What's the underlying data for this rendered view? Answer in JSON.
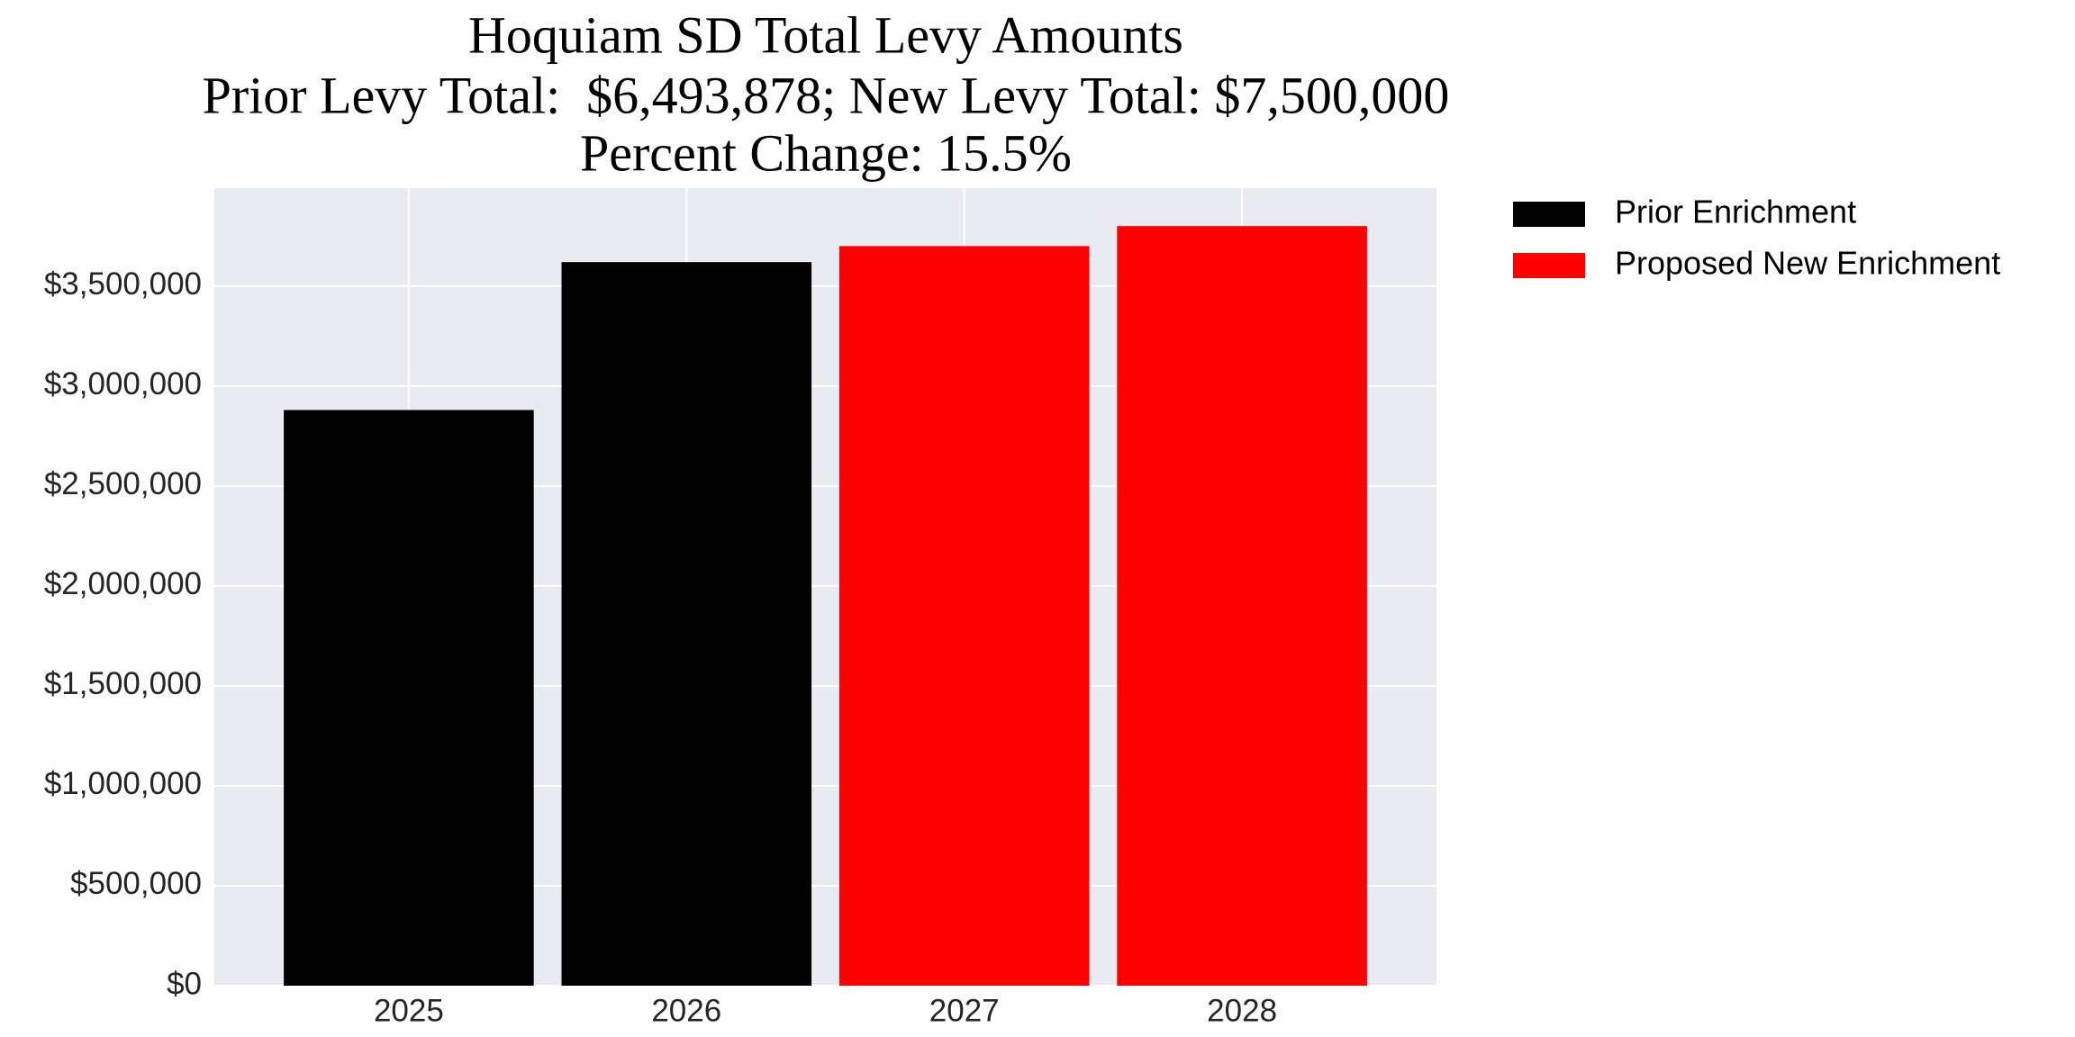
{
  "chart_data": {
    "type": "bar",
    "title": "Hoquiam SD Total Levy Amounts",
    "subtitle": [
      "Prior Levy Total:  $6,493,878; New Levy Total: $7,500,000",
      "Percent Change: 15.5%"
    ],
    "categories": [
      "2025",
      "2026",
      "2027",
      "2028"
    ],
    "series": [
      {
        "name": "Prior Enrichment",
        "color": "#000000",
        "values": [
          2880000,
          3620000,
          null,
          null
        ]
      },
      {
        "name": "Proposed New Enrichment",
        "color": "#ff0000",
        "values": [
          null,
          null,
          3700000,
          3800000
        ]
      }
    ],
    "ylim": [
      0,
      3990000
    ],
    "yticks": [
      {
        "value": 0,
        "label": "$0"
      },
      {
        "value": 500000,
        "label": "$500,000"
      },
      {
        "value": 1000000,
        "label": "$1,000,000"
      },
      {
        "value": 1500000,
        "label": "$1,500,000"
      },
      {
        "value": 2000000,
        "label": "$2,000,000"
      },
      {
        "value": 2500000,
        "label": "$2,500,000"
      },
      {
        "value": 3000000,
        "label": "$3,000,000"
      },
      {
        "value": 3500000,
        "label": "$3,500,000"
      }
    ],
    "grid": true,
    "legend": "outside-right",
    "background": "#eaeaf2"
  }
}
